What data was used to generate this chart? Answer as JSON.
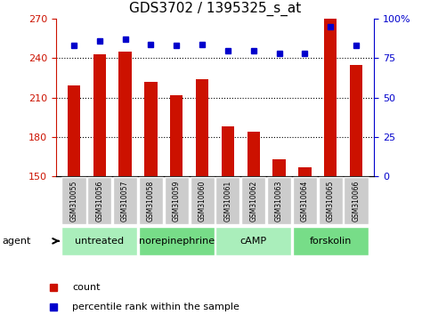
{
  "title": "GDS3702 / 1395325_s_at",
  "categories": [
    "GSM310055",
    "GSM310056",
    "GSM310057",
    "GSM310058",
    "GSM310059",
    "GSM310060",
    "GSM310061",
    "GSM310062",
    "GSM310063",
    "GSM310064",
    "GSM310065",
    "GSM310066"
  ],
  "count_values": [
    219,
    243,
    245,
    222,
    212,
    224,
    188,
    184,
    163,
    157,
    270,
    235
  ],
  "percentile_values": [
    83,
    86,
    87,
    84,
    83,
    84,
    80,
    80,
    78,
    78,
    95,
    83
  ],
  "bar_color": "#cc1100",
  "dot_color": "#0000cc",
  "ylim_left": [
    150,
    270
  ],
  "ylim_right": [
    0,
    100
  ],
  "yticks_left": [
    150,
    180,
    210,
    240,
    270
  ],
  "yticks_right": [
    0,
    25,
    50,
    75,
    100
  ],
  "right_ytick_labels": [
    "0",
    "25",
    "50",
    "75",
    "100%"
  ],
  "grid_values": [
    180,
    210,
    240
  ],
  "agent_groups": [
    {
      "label": "untreated",
      "indices": [
        0,
        1,
        2
      ]
    },
    {
      "label": "norepinephrine",
      "indices": [
        3,
        4,
        5
      ]
    },
    {
      "label": "cAMP",
      "indices": [
        6,
        7,
        8
      ]
    },
    {
      "label": "forskolin",
      "indices": [
        9,
        10,
        11
      ]
    }
  ],
  "agent_color_light": "#aaeebb",
  "agent_color_dark": "#77dd88",
  "xticklabel_bg": "#cccccc",
  "legend_count_label": "count",
  "legend_pct_label": "percentile rank within the sample",
  "background_color": "#ffffff",
  "left_tick_color": "#cc1100",
  "right_tick_color": "#0000cc",
  "title_fontsize": 11,
  "tick_fontsize": 8,
  "bar_width": 0.5
}
